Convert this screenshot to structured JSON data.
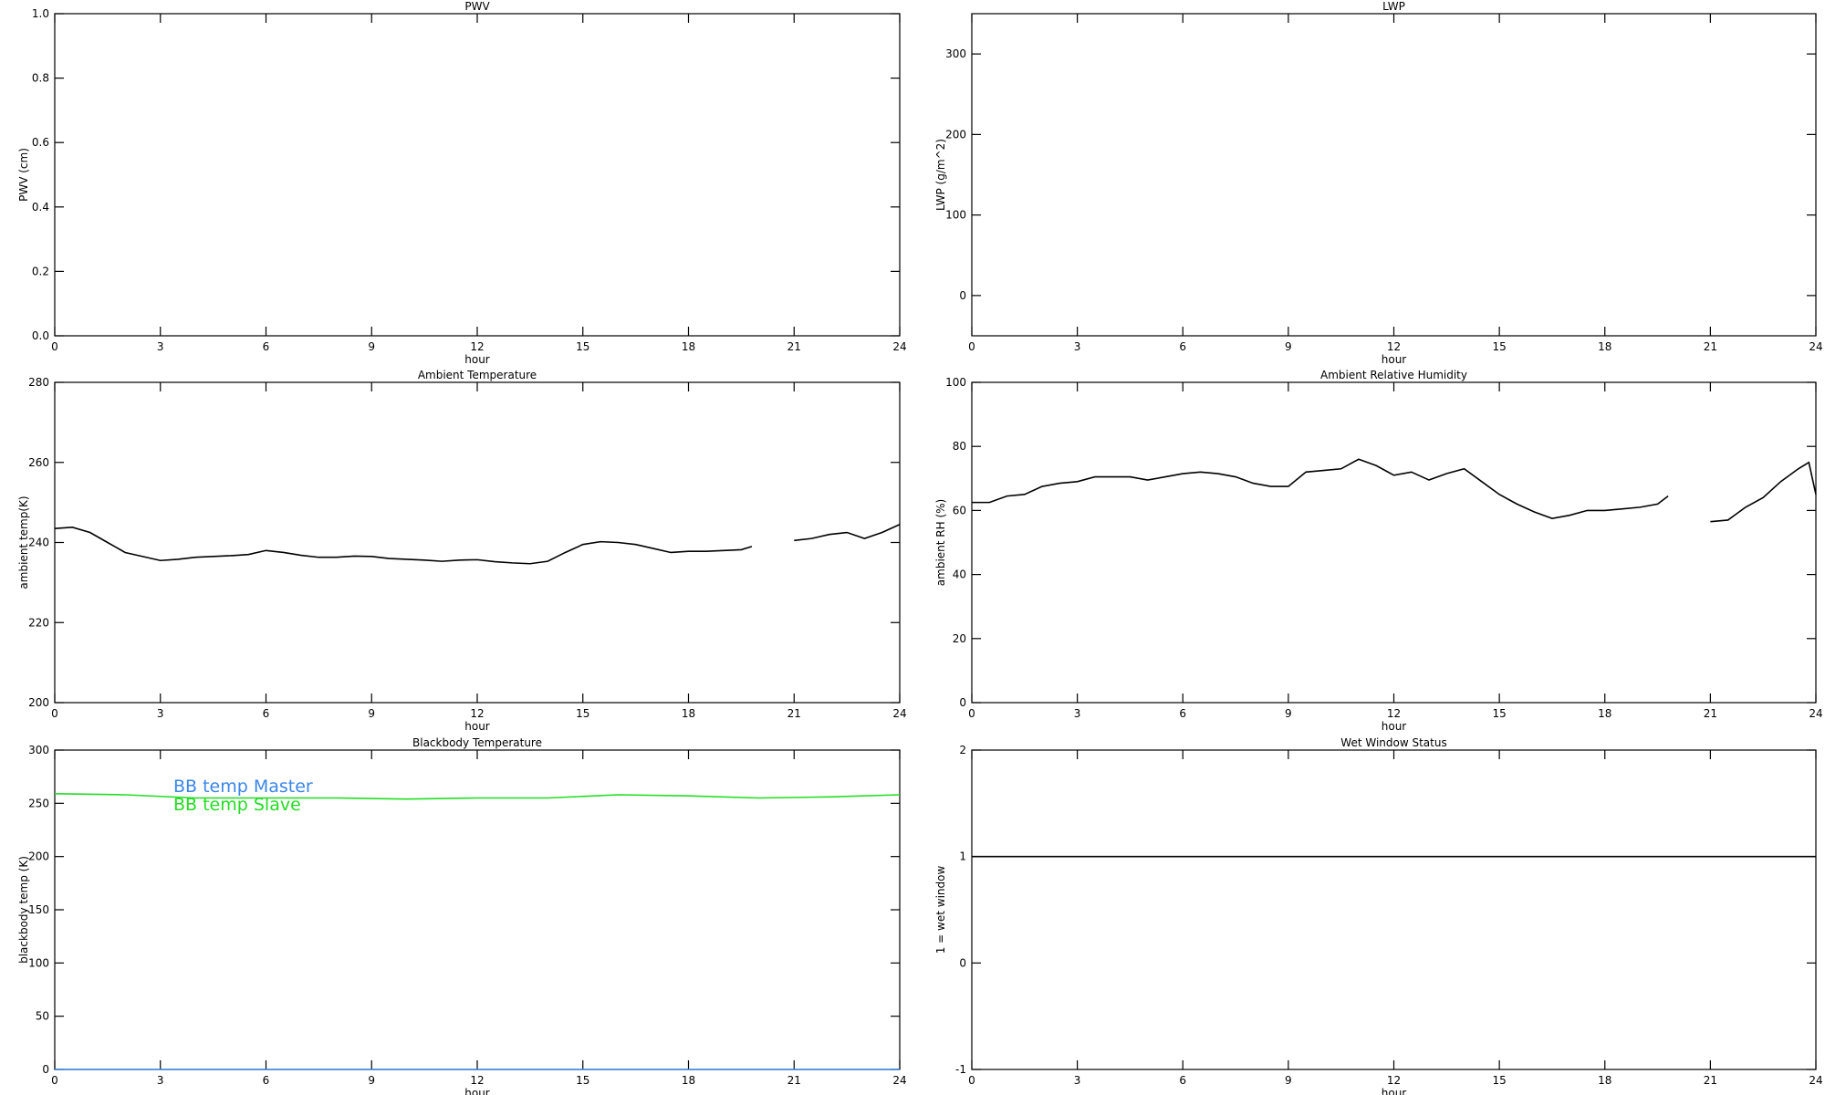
{
  "chart_data": [
    {
      "type": "line",
      "title": "PWV",
      "xlabel": "hour",
      "ylabel": "PWV (cm)",
      "xlim": [
        0,
        24
      ],
      "xticks": [
        0,
        3,
        6,
        9,
        12,
        15,
        18,
        21,
        24
      ],
      "ylim": [
        0,
        1
      ],
      "yticks": [
        {
          "value": 0,
          "label": "0.0"
        },
        0.2,
        0.4,
        0.6,
        0.8,
        {
          "value": 1,
          "label": "1.0"
        }
      ],
      "x": [],
      "series": []
    },
    {
      "type": "line",
      "title": "LWP",
      "xlabel": "hour",
      "ylabel": "LWP (g/m^2)",
      "xlim": [
        0,
        24
      ],
      "xticks": [
        0,
        3,
        6,
        9,
        12,
        15,
        18,
        21,
        24
      ],
      "ylim": [
        -50,
        350
      ],
      "yticks": [
        0,
        100,
        200,
        300
      ],
      "x": [],
      "series": []
    },
    {
      "type": "line",
      "title": "Ambient Temperature",
      "xlabel": "hour",
      "ylabel": "ambient temp(K)",
      "xlim": [
        0,
        24
      ],
      "xticks": [
        0,
        3,
        6,
        9,
        12,
        15,
        18,
        21,
        24
      ],
      "ylim": [
        200,
        280
      ],
      "yticks": [
        200,
        220,
        240,
        260,
        280
      ],
      "x": [
        0,
        0.5,
        1,
        1.5,
        2,
        2.5,
        3,
        3.5,
        4,
        4.5,
        5,
        5.5,
        6,
        6.5,
        7,
        7.5,
        8,
        8.5,
        9,
        9.5,
        10,
        10.5,
        11,
        11.5,
        12,
        12.5,
        13,
        13.5,
        14,
        14.5,
        15,
        15.5,
        16,
        16.5,
        17,
        17.5,
        18,
        18.5,
        19,
        19.5,
        19.8,
        20.3,
        21,
        21.5,
        22,
        22.5,
        23,
        23.5,
        24
      ],
      "series": [
        {
          "color": "#000000",
          "values": [
            243.5,
            243.8,
            242.5,
            240,
            237.5,
            236.5,
            235.5,
            235.8,
            236.3,
            236.5,
            236.7,
            237,
            238,
            237.5,
            236.8,
            236.3,
            236.3,
            236.6,
            236.5,
            236,
            235.8,
            235.6,
            235.3,
            235.6,
            235.7,
            235.2,
            234.9,
            234.7,
            235.3,
            237.5,
            239.5,
            240.2,
            240,
            239.5,
            238.5,
            237.5,
            237.8,
            237.8,
            238,
            238.2,
            239,
            null,
            240.5,
            241,
            242,
            242.5,
            241,
            242.5,
            244.5
          ]
        }
      ]
    },
    {
      "type": "line",
      "title": "Ambient Relative Humidity",
      "xlabel": "hour",
      "ylabel": "ambient RH (%)",
      "xlim": [
        0,
        24
      ],
      "xticks": [
        0,
        3,
        6,
        9,
        12,
        15,
        18,
        21,
        24
      ],
      "ylim": [
        0,
        100
      ],
      "yticks": [
        0,
        20,
        40,
        60,
        80,
        100
      ],
      "x": [
        0,
        0.5,
        1,
        1.5,
        2,
        2.5,
        3,
        3.5,
        4,
        4.5,
        5,
        5.5,
        6,
        6.5,
        7,
        7.5,
        8,
        8.5,
        9,
        9.5,
        10,
        10.5,
        11,
        11.5,
        12,
        12.5,
        13,
        13.5,
        14,
        14.5,
        15,
        15.5,
        16,
        16.5,
        17,
        17.5,
        18,
        18.5,
        19,
        19.5,
        19.8,
        20.3,
        21,
        21.5,
        22,
        22.5,
        23,
        23.5,
        23.8,
        24
      ],
      "series": [
        {
          "color": "#000000",
          "values": [
            62.5,
            62.5,
            64.5,
            65,
            67.5,
            68.5,
            69,
            70.5,
            70.5,
            70.5,
            69.5,
            70.5,
            71.5,
            72,
            71.5,
            70.5,
            68.5,
            67.5,
            67.5,
            72,
            72.5,
            73,
            76,
            74,
            71,
            72,
            69.5,
            71.5,
            73,
            69,
            65,
            62,
            59.5,
            57.5,
            58.5,
            60,
            60,
            60.5,
            61,
            62,
            64.5,
            null,
            56.5,
            57,
            61,
            64,
            69,
            73,
            75,
            65
          ]
        }
      ]
    },
    {
      "type": "line",
      "title": "Blackbody Temperature",
      "xlabel": "hour",
      "ylabel": "blackbody temp (K)",
      "xlim": [
        0,
        24
      ],
      "xticks": [
        0,
        3,
        6,
        9,
        12,
        15,
        18,
        21,
        24
      ],
      "ylim": [
        0,
        300
      ],
      "yticks": [
        0,
        50,
        100,
        150,
        200,
        250,
        300
      ],
      "legend": "upper left",
      "x": [
        0,
        2,
        4,
        6,
        8,
        10,
        12,
        14,
        16,
        18,
        20,
        22,
        24
      ],
      "series": [
        {
          "name": "BB temp Master",
          "color": "#3a86e8",
          "values": [
            0,
            0,
            0,
            0,
            0,
            0,
            0,
            0,
            0,
            0,
            0,
            0,
            0
          ]
        },
        {
          "name": "BB temp Slave",
          "color": "#22dd22",
          "values": [
            259,
            258,
            255,
            255,
            255,
            254,
            255,
            255,
            258,
            257,
            255,
            256,
            258
          ]
        }
      ]
    },
    {
      "type": "line",
      "title": "Wet Window Status",
      "xlabel": "hour",
      "ylabel": "1 = wet window",
      "xlim": [
        0,
        24
      ],
      "xticks": [
        0,
        3,
        6,
        9,
        12,
        15,
        18,
        21,
        24
      ],
      "ylim": [
        -1,
        2
      ],
      "yticks": [
        -1,
        0,
        1,
        2
      ],
      "x": [
        0,
        24
      ],
      "series": [
        {
          "color": "#000000",
          "values": [
            1,
            1
          ]
        }
      ]
    }
  ]
}
